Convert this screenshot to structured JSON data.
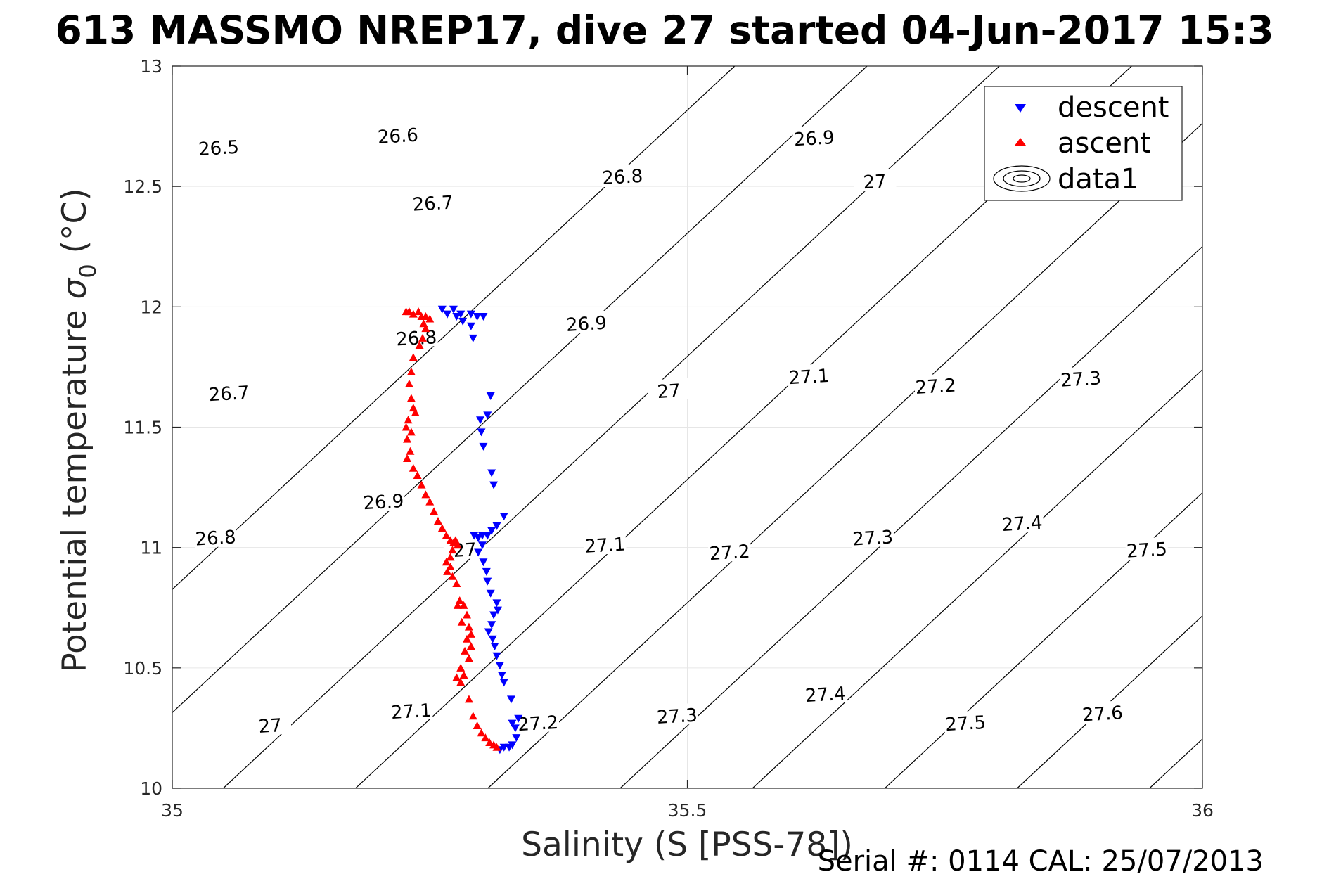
{
  "chart_data": {
    "type": "scatter",
    "title": "613 MASSMO NREP17, dive 27 started 04-Jun-2017 15:3",
    "xlabel": "Salinity (S [PSS-78])",
    "ylabel_main": "Potential temperature ",
    "ylabel_sigma": "σ",
    "ylabel_sub": "0",
    "ylabel_unit": " (°C)",
    "xlim": [
      35,
      36
    ],
    "ylim": [
      10,
      13
    ],
    "x_ticks": [
      35,
      35.5,
      36
    ],
    "x_tick_labels": [
      "35",
      "35.5",
      "36"
    ],
    "y_ticks": [
      10,
      10.5,
      11,
      11.5,
      12,
      12.5,
      13
    ],
    "y_tick_labels": [
      "10",
      "10.5",
      "11",
      "11.5",
      "12",
      "12.5",
      "13"
    ],
    "grid": true,
    "legend_position": "top-right",
    "footer": "Serial #: 0114  CAL: 25/07/2013",
    "legend": [
      {
        "label": "descent",
        "marker": "triangle-down",
        "color": "#0000ff"
      },
      {
        "label": "ascent",
        "marker": "triangle-up",
        "color": "#ff0000"
      },
      {
        "label": "data1",
        "marker": "contour",
        "color": "#000000"
      }
    ],
    "colors": {
      "descent": "#0000ff",
      "ascent": "#ff0000",
      "contour": "#000000",
      "grid": "#e6e6e6"
    },
    "contour_levels": [
      26.5,
      26.6,
      26.7,
      26.8,
      26.9,
      27,
      27.1,
      27.2,
      27.3,
      27.4,
      27.5,
      27.6
    ],
    "contour_labels": [
      {
        "text": "26.5",
        "x": 35.045,
        "y": 12.66
      },
      {
        "text": "26.6",
        "x": 35.219,
        "y": 12.71
      },
      {
        "text": "26.7",
        "x": 35.253,
        "y": 12.43
      },
      {
        "text": "26.8",
        "x": 35.437,
        "y": 12.54
      },
      {
        "text": "26.9",
        "x": 35.623,
        "y": 12.7
      },
      {
        "text": "27",
        "x": 35.682,
        "y": 12.52
      },
      {
        "text": "26.7",
        "x": 35.055,
        "y": 11.64
      },
      {
        "text": "26.8",
        "x": 35.237,
        "y": 11.87
      },
      {
        "text": "26.9",
        "x": 35.402,
        "y": 11.93
      },
      {
        "text": "27",
        "x": 35.482,
        "y": 11.65
      },
      {
        "text": "27.1",
        "x": 35.618,
        "y": 11.71
      },
      {
        "text": "27.2",
        "x": 35.741,
        "y": 11.67
      },
      {
        "text": "27.3",
        "x": 35.882,
        "y": 11.7
      },
      {
        "text": "26.8",
        "x": 35.042,
        "y": 11.04
      },
      {
        "text": "26.9",
        "x": 35.205,
        "y": 11.19
      },
      {
        "text": "27",
        "x": 35.284,
        "y": 10.99
      },
      {
        "text": "27.1",
        "x": 35.42,
        "y": 11.01
      },
      {
        "text": "27.2",
        "x": 35.541,
        "y": 10.98
      },
      {
        "text": "27.3",
        "x": 35.68,
        "y": 11.04
      },
      {
        "text": "27.4",
        "x": 35.825,
        "y": 11.1
      },
      {
        "text": "27.5",
        "x": 35.946,
        "y": 10.99
      },
      {
        "text": "27",
        "x": 35.095,
        "y": 10.26
      },
      {
        "text": "27.1",
        "x": 35.232,
        "y": 10.32
      },
      {
        "text": "27.2",
        "x": 35.355,
        "y": 10.27
      },
      {
        "text": "27.3",
        "x": 35.49,
        "y": 10.3
      },
      {
        "text": "27.4",
        "x": 35.634,
        "y": 10.39
      },
      {
        "text": "27.5",
        "x": 35.77,
        "y": 10.27
      },
      {
        "text": "27.6",
        "x": 35.903,
        "y": 10.31
      }
    ],
    "series": [
      {
        "name": "descent",
        "points": [
          [
            35.262,
            11.99
          ],
          [
            35.267,
            11.97
          ],
          [
            35.273,
            11.99
          ],
          [
            35.276,
            11.96
          ],
          [
            35.28,
            11.97
          ],
          [
            35.282,
            11.94
          ],
          [
            35.29,
            11.97
          ],
          [
            35.296,
            11.96
          ],
          [
            35.302,
            11.96
          ],
          [
            35.29,
            11.92
          ],
          [
            35.292,
            11.87
          ],
          [
            35.309,
            11.63
          ],
          [
            35.306,
            11.55
          ],
          [
            35.299,
            11.53
          ],
          [
            35.3,
            11.48
          ],
          [
            35.302,
            11.42
          ],
          [
            35.31,
            11.31
          ],
          [
            35.312,
            11.26
          ],
          [
            35.322,
            11.13
          ],
          [
            35.315,
            11.09
          ],
          [
            35.31,
            11.07
          ],
          [
            35.306,
            11.05
          ],
          [
            35.301,
            11.05
          ],
          [
            35.297,
            11.04
          ],
          [
            35.293,
            11.05
          ],
          [
            35.301,
            11.01
          ],
          [
            35.297,
            10.98
          ],
          [
            35.302,
            10.94
          ],
          [
            35.305,
            10.9
          ],
          [
            35.306,
            10.86
          ],
          [
            35.309,
            10.81
          ],
          [
            35.315,
            10.77
          ],
          [
            35.316,
            10.74
          ],
          [
            35.312,
            10.72
          ],
          [
            35.31,
            10.68
          ],
          [
            35.307,
            10.65
          ],
          [
            35.311,
            10.62
          ],
          [
            35.313,
            10.59
          ],
          [
            35.315,
            10.55
          ],
          [
            35.318,
            10.51
          ],
          [
            35.32,
            10.47
          ],
          [
            35.322,
            10.44
          ],
          [
            35.329,
            10.37
          ],
          [
            35.33,
            10.27
          ],
          [
            35.336,
            10.29
          ],
          [
            35.333,
            10.25
          ],
          [
            35.334,
            10.21
          ],
          [
            35.33,
            10.18
          ],
          [
            35.327,
            10.17
          ],
          [
            35.322,
            10.17
          ],
          [
            35.318,
            10.16
          ]
        ]
      },
      {
        "name": "ascent",
        "points": [
          [
            35.227,
            11.98
          ],
          [
            35.23,
            11.98
          ],
          [
            35.234,
            11.97
          ],
          [
            35.239,
            11.98
          ],
          [
            35.242,
            11.96
          ],
          [
            35.244,
            11.93
          ],
          [
            35.246,
            11.96
          ],
          [
            35.25,
            11.95
          ],
          [
            35.246,
            11.91
          ],
          [
            35.243,
            11.87
          ],
          [
            35.24,
            11.84
          ],
          [
            35.234,
            11.79
          ],
          [
            35.232,
            11.73
          ],
          [
            35.23,
            11.68
          ],
          [
            35.232,
            11.62
          ],
          [
            35.234,
            11.58
          ],
          [
            35.236,
            11.56
          ],
          [
            35.229,
            11.53
          ],
          [
            35.227,
            11.5
          ],
          [
            35.232,
            11.48
          ],
          [
            35.228,
            11.45
          ],
          [
            35.231,
            11.4
          ],
          [
            35.228,
            11.37
          ],
          [
            35.234,
            11.33
          ],
          [
            35.238,
            11.3
          ],
          [
            35.242,
            11.26
          ],
          [
            35.246,
            11.22
          ],
          [
            35.25,
            11.19
          ],
          [
            35.254,
            11.15
          ],
          [
            35.258,
            11.11
          ],
          [
            35.262,
            11.08
          ],
          [
            35.266,
            11.05
          ],
          [
            35.27,
            11.03
          ],
          [
            35.273,
            11.02
          ],
          [
            35.275,
            11.03
          ],
          [
            35.277,
            11.01
          ],
          [
            35.272,
            10.99
          ],
          [
            35.27,
            10.96
          ],
          [
            35.266,
            10.94
          ],
          [
            35.27,
            10.92
          ],
          [
            35.267,
            10.9
          ],
          [
            35.272,
            10.88
          ],
          [
            35.276,
            10.85
          ],
          [
            35.279,
            10.78
          ],
          [
            35.277,
            10.76
          ],
          [
            35.283,
            10.76
          ],
          [
            35.286,
            10.72
          ],
          [
            35.281,
            10.69
          ],
          [
            35.288,
            10.67
          ],
          [
            35.29,
            10.64
          ],
          [
            35.286,
            10.62
          ],
          [
            35.29,
            10.59
          ],
          [
            35.284,
            10.57
          ],
          [
            35.288,
            10.54
          ],
          [
            35.28,
            10.5
          ],
          [
            35.283,
            10.47
          ],
          [
            35.276,
            10.46
          ],
          [
            35.28,
            10.44
          ],
          [
            35.288,
            10.37
          ],
          [
            35.292,
            10.3
          ],
          [
            35.296,
            10.26
          ],
          [
            35.3,
            10.23
          ],
          [
            35.304,
            10.21
          ],
          [
            35.308,
            10.19
          ],
          [
            35.312,
            10.18
          ],
          [
            35.315,
            10.17
          ]
        ]
      }
    ]
  }
}
